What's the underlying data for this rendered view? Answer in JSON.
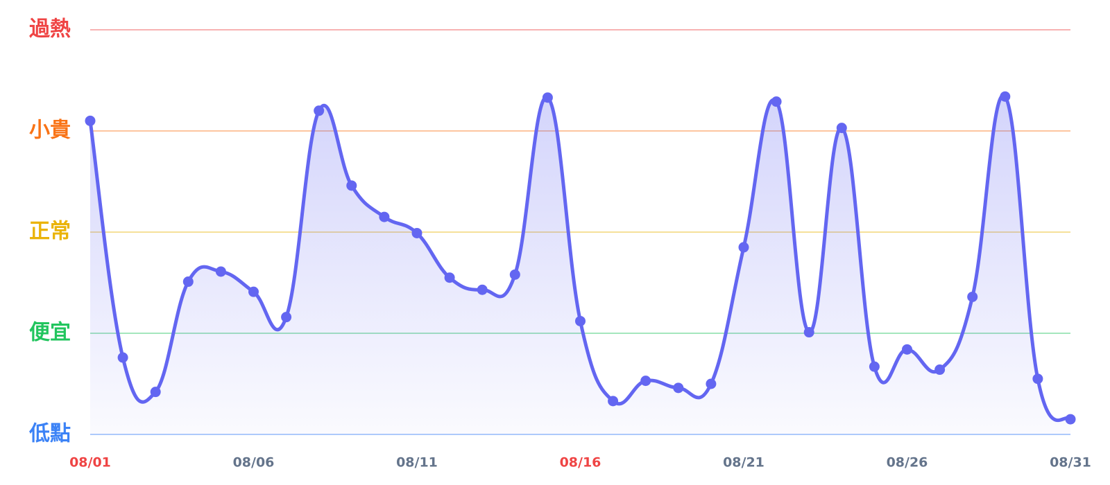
{
  "chart_data": {
    "type": "area-line",
    "categories": [
      "08/01",
      null,
      null,
      null,
      null,
      "08/06",
      null,
      null,
      null,
      null,
      "08/11",
      null,
      null,
      null,
      null,
      "08/16",
      null,
      null,
      null,
      null,
      "08/21",
      null,
      null,
      null,
      null,
      "08/26",
      null,
      null,
      null,
      null,
      "08/31"
    ],
    "values": [
      3.1,
      0.76,
      0.42,
      1.51,
      1.61,
      1.41,
      1.16,
      3.2,
      2.46,
      2.15,
      1.99,
      1.55,
      1.43,
      1.58,
      3.33,
      1.12,
      0.33,
      0.53,
      0.46,
      0.5,
      1.85,
      3.29,
      1.01,
      3.03,
      0.67,
      0.84,
      0.64,
      1.36,
      3.34,
      0.55,
      0.15
    ],
    "color": "#6366f1",
    "ylim": [
      0,
      4
    ],
    "yticks": [
      {
        "value": 0,
        "label": "低點"
      },
      {
        "value": 1,
        "label": "便宜"
      },
      {
        "value": 2,
        "label": "正常"
      },
      {
        "value": 3,
        "label": "小貴"
      },
      {
        "value": 4,
        "label": "過熱"
      }
    ],
    "ytick_colors": [
      "#3b82f6",
      "#22c55e",
      "#eab308",
      "#f97316",
      "#ef4444"
    ],
    "grid": true,
    "xtick_color": "#64748b",
    "highlight_color": "#ef4444",
    "highlight_indices": [
      0,
      15
    ]
  }
}
